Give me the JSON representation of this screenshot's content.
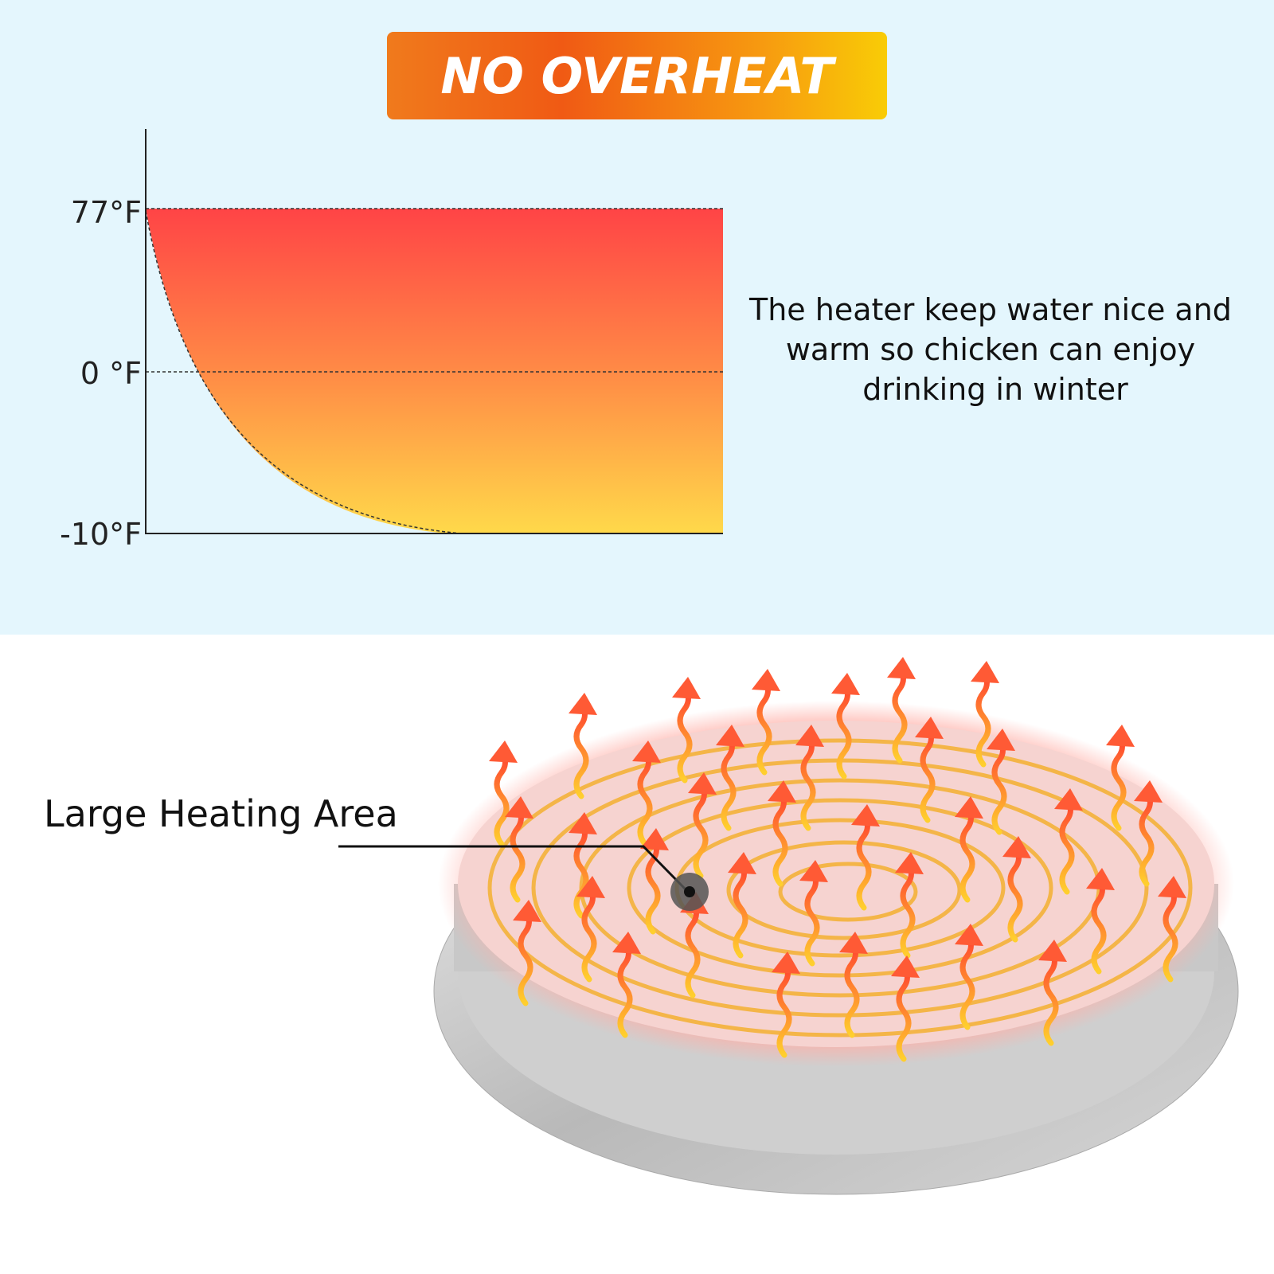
{
  "banner": {
    "title": "NO OVERHEAT"
  },
  "graph": {
    "labels": [
      "77°F",
      "0 °F",
      "-10°F"
    ]
  },
  "description": {
    "lines": [
      "The heater keep water nice and",
      "warm so chicken can enjoy",
      "drinking in winter"
    ]
  },
  "callout": {
    "label": "Large Heating Area"
  }
}
